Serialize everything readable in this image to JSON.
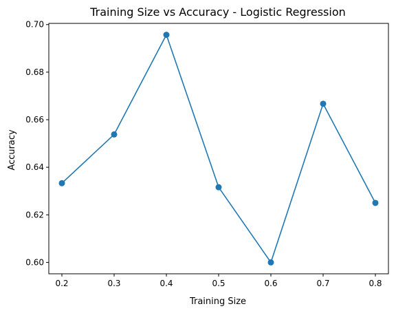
{
  "chart_data": {
    "type": "line",
    "title": "Training Size vs Accuracy - Logistic Regression",
    "xlabel": "Training Size",
    "ylabel": "Accuracy",
    "x": [
      0.2,
      0.3,
      0.4,
      0.5,
      0.6,
      0.7,
      0.8
    ],
    "series": [
      {
        "values": [
          0.6333,
          0.6538,
          0.6957,
          0.6316,
          0.6,
          0.6667,
          0.625
        ],
        "color": "#1f77b4",
        "marker": "circle"
      }
    ],
    "xlim": [
      0.175,
      0.825
    ],
    "ylim": [
      0.5952,
      0.7005
    ],
    "xticks": [
      0.2,
      0.3,
      0.4,
      0.5,
      0.6,
      0.7,
      0.8
    ],
    "xtick_labels": [
      "0.2",
      "0.3",
      "0.4",
      "0.5",
      "0.6",
      "0.7",
      "0.8"
    ],
    "yticks": [
      0.6,
      0.62,
      0.64,
      0.66,
      0.68,
      0.7
    ],
    "ytick_labels": [
      "0.60",
      "0.62",
      "0.64",
      "0.66",
      "0.68",
      "0.70"
    ],
    "grid": false,
    "legend": false
  }
}
